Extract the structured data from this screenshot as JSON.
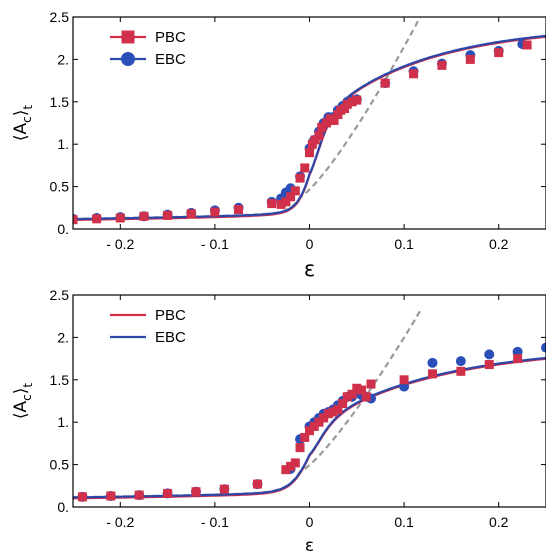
{
  "colors": {
    "pbc": "#d0304a",
    "ebc": "#2a4fb8",
    "pbc_line": "#cf2e46",
    "ebc_line": "#2d47a8",
    "dashed": "#9a9a9a"
  },
  "chart_data": [
    {
      "type": "scatter",
      "title": "",
      "xlabel": "ε",
      "ylabel": "⟨A_c⟩_t",
      "ylabel_main": "⟨A",
      "ylabel_sub": "c",
      "ylabel_close": "⟩",
      "ylabel_sub2": "t",
      "xlim": [
        -0.25,
        0.25
      ],
      "ylim": [
        0,
        2.5
      ],
      "grid": false,
      "legend_position": "top-left",
      "legend_style": "markers",
      "xticks": [
        -0.2,
        -0.1,
        0,
        0.1,
        0.2
      ],
      "xtick_labels": [
        "- 0.2",
        "- 0.1",
        "0",
        "0.1",
        "0.2"
      ],
      "yticks": [
        0,
        0.5,
        1,
        1.5,
        2,
        2.5
      ],
      "ytick_labels": [
        "0.",
        "0.5",
        "1.",
        "1.5",
        "2.",
        "2.5"
      ],
      "series": [
        {
          "name": "PBC",
          "marker": "square",
          "points": [
            [
              -0.25,
              0.11
            ],
            [
              -0.225,
              0.12
            ],
            [
              -0.2,
              0.13
            ],
            [
              -0.175,
              0.15
            ],
            [
              -0.15,
              0.16
            ],
            [
              -0.125,
              0.18
            ],
            [
              -0.1,
              0.2
            ],
            [
              -0.075,
              0.23
            ],
            [
              -0.04,
              0.3
            ],
            [
              -0.03,
              0.29
            ],
            [
              -0.025,
              0.32
            ],
            [
              -0.02,
              0.38
            ],
            [
              -0.015,
              0.45
            ],
            [
              -0.01,
              0.6
            ],
            [
              -0.005,
              0.72
            ],
            [
              0,
              0.9
            ],
            [
              0.003,
              1.0
            ],
            [
              0.006,
              1.05
            ],
            [
              0.01,
              1.1
            ],
            [
              0.013,
              1.2
            ],
            [
              0.018,
              1.25
            ],
            [
              0.022,
              1.3
            ],
            [
              0.026,
              1.28
            ],
            [
              0.03,
              1.35
            ],
            [
              0.033,
              1.4
            ],
            [
              0.037,
              1.42
            ],
            [
              0.04,
              1.47
            ],
            [
              0.045,
              1.5
            ],
            [
              0.05,
              1.52
            ],
            [
              0.08,
              1.72
            ],
            [
              0.11,
              1.83
            ],
            [
              0.14,
              1.93
            ],
            [
              0.17,
              2.0
            ],
            [
              0.2,
              2.08
            ],
            [
              0.23,
              2.17
            ]
          ]
        },
        {
          "name": "EBC",
          "marker": "circle",
          "points": [
            [
              -0.25,
              0.12
            ],
            [
              -0.225,
              0.13
            ],
            [
              -0.2,
              0.14
            ],
            [
              -0.175,
              0.15
            ],
            [
              -0.15,
              0.17
            ],
            [
              -0.125,
              0.19
            ],
            [
              -0.1,
              0.22
            ],
            [
              -0.075,
              0.25
            ],
            [
              -0.04,
              0.32
            ],
            [
              -0.03,
              0.36
            ],
            [
              -0.025,
              0.43
            ],
            [
              -0.02,
              0.48
            ],
            [
              -0.01,
              0.62
            ],
            [
              0,
              0.95
            ],
            [
              0.005,
              1.05
            ],
            [
              0.01,
              1.15
            ],
            [
              0.015,
              1.25
            ],
            [
              0.02,
              1.32
            ],
            [
              0.025,
              1.32
            ],
            [
              0.03,
              1.4
            ],
            [
              0.035,
              1.45
            ],
            [
              0.04,
              1.5
            ],
            [
              0.045,
              1.52
            ],
            [
              0.05,
              1.53
            ],
            [
              0.08,
              1.72
            ],
            [
              0.11,
              1.86
            ],
            [
              0.14,
              1.95
            ],
            [
              0.17,
              2.05
            ],
            [
              0.2,
              2.1
            ],
            [
              0.225,
              2.18
            ]
          ]
        }
      ]
    },
    {
      "type": "scatter",
      "title": "",
      "xlabel": "ε",
      "ylabel": "⟨A_c⟩_t",
      "ylabel_main": "⟨A",
      "ylabel_sub": "c",
      "ylabel_close": "⟩",
      "ylabel_sub2": "t",
      "xlim": [
        -0.25,
        0.25
      ],
      "ylim": [
        0,
        2.5
      ],
      "grid": false,
      "legend_position": "top-left",
      "legend_style": "lines",
      "xticks": [
        -0.2,
        -0.1,
        0,
        0.1,
        0.2
      ],
      "xtick_labels": [
        "- 0.2",
        "- 0.1",
        "0",
        "0.1",
        "0.2"
      ],
      "yticks": [
        0,
        0.5,
        1,
        1.5,
        2,
        2.5
      ],
      "ytick_labels": [
        "0.",
        "0.5",
        "1.",
        "1.5",
        "2.",
        "2.5"
      ],
      "series": [
        {
          "name": "PBC",
          "marker": "square",
          "points": [
            [
              -0.24,
              0.12
            ],
            [
              -0.21,
              0.13
            ],
            [
              -0.18,
              0.14
            ],
            [
              -0.15,
              0.16
            ],
            [
              -0.12,
              0.18
            ],
            [
              -0.09,
              0.21
            ],
            [
              -0.055,
              0.27
            ],
            [
              -0.025,
              0.44
            ],
            [
              -0.02,
              0.48
            ],
            [
              -0.015,
              0.52
            ],
            [
              -0.01,
              0.7
            ],
            [
              -0.005,
              0.82
            ],
            [
              0,
              0.9
            ],
            [
              0.005,
              0.95
            ],
            [
              0.01,
              1.0
            ],
            [
              0.015,
              1.05
            ],
            [
              0.02,
              1.1
            ],
            [
              0.025,
              1.12
            ],
            [
              0.03,
              1.15
            ],
            [
              0.035,
              1.22
            ],
            [
              0.04,
              1.3
            ],
            [
              0.045,
              1.33
            ],
            [
              0.05,
              1.4
            ],
            [
              0.055,
              1.38
            ],
            [
              0.06,
              1.3
            ],
            [
              0.065,
              1.45
            ],
            [
              0.1,
              1.5
            ],
            [
              0.13,
              1.57
            ],
            [
              0.16,
              1.6
            ],
            [
              0.19,
              1.68
            ],
            [
              0.22,
              1.75
            ]
          ]
        },
        {
          "name": "EBC",
          "marker": "circle",
          "points": [
            [
              -0.24,
              0.12
            ],
            [
              -0.21,
              0.13
            ],
            [
              -0.18,
              0.14
            ],
            [
              -0.15,
              0.16
            ],
            [
              -0.12,
              0.18
            ],
            [
              -0.09,
              0.21
            ],
            [
              -0.055,
              0.27
            ],
            [
              -0.02,
              0.45
            ],
            [
              -0.01,
              0.8
            ],
            [
              0,
              0.95
            ],
            [
              0.005,
              1.0
            ],
            [
              0.01,
              1.05
            ],
            [
              0.015,
              1.1
            ],
            [
              0.02,
              1.12
            ],
            [
              0.025,
              1.15
            ],
            [
              0.03,
              1.2
            ],
            [
              0.035,
              1.25
            ],
            [
              0.04,
              1.3
            ],
            [
              0.045,
              1.3
            ],
            [
              0.05,
              1.35
            ],
            [
              0.055,
              1.32
            ],
            [
              0.06,
              1.3
            ],
            [
              0.065,
              1.28
            ],
            [
              0.1,
              1.42
            ],
            [
              0.13,
              1.7
            ],
            [
              0.16,
              1.72
            ],
            [
              0.19,
              1.8
            ],
            [
              0.22,
              1.83
            ],
            [
              0.25,
              1.88
            ]
          ]
        }
      ]
    }
  ]
}
